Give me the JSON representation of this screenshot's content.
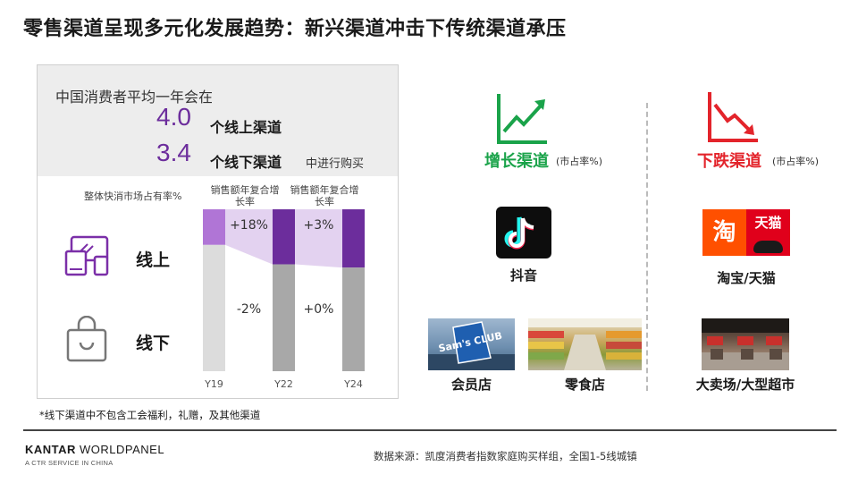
{
  "title": "零售渠道呈现多元化发展趋势：新兴渠道冲击下传统渠道承压",
  "panel": {
    "line1": "中国消费者平均一年会在",
    "online_num": "4.0",
    "online_label": "个线上渠道",
    "offline_num": "3.4",
    "offline_label": "个线下渠道",
    "suffix": "中进行购买",
    "share_label": "整体快消市场占有率%",
    "cagr_label": "销售额年复合增长率",
    "row_online": "线上",
    "row_offline": "线下"
  },
  "chart_data": {
    "type": "bar",
    "title": "",
    "categories": [
      "Y19",
      "Y22",
      "Y24"
    ],
    "series": [
      {
        "name": "线上",
        "values": [
          22,
          34,
          36
        ],
        "color": "#6c2d9c"
      },
      {
        "name": "线下",
        "values": [
          78,
          66,
          64
        ],
        "color": "#a8a8a8"
      }
    ],
    "annotations": [
      {
        "period": "Y19-Y22",
        "online": "+18%",
        "offline": "-2%"
      },
      {
        "period": "Y22-Y24",
        "online": "+3%",
        "offline": "+0%"
      }
    ],
    "ylim": [
      0,
      100
    ],
    "colors": {
      "online_first": "#b075d6",
      "online": "#6c2d9c",
      "offline_first": "#dcdcdc",
      "offline": "#a8a8a8",
      "band": "#e3d2f0"
    }
  },
  "right": {
    "grow_title": "增长渠道",
    "grow_note": "(市占率%)",
    "fall_title": "下跌渠道",
    "fall_note": "(市占率%)",
    "tiktok": "抖音",
    "taobao": "淘宝/天猫",
    "taobao_left": "淘",
    "taobao_right": "天猫",
    "sams": "会员店",
    "snack": "零食店",
    "hyper": "大卖场/大型超市",
    "sams_sign": "Sam's CLUB",
    "colors": {
      "grow": "#1aa34a",
      "fall": "#e3242b",
      "tiktok_cyan": "#25f4ee",
      "tiktok_red": "#fe2c55"
    }
  },
  "footnote": "*线下渠道中不包含工会福利，礼赠，及其他渠道",
  "logo": {
    "main_bold": "KANTAR",
    "main_rest": " WORLDPANEL",
    "sub": "A CTR SERVICE IN CHINA"
  },
  "source": "数据来源：凯度消费者指数家庭购买样组，全国1-5线城镇"
}
